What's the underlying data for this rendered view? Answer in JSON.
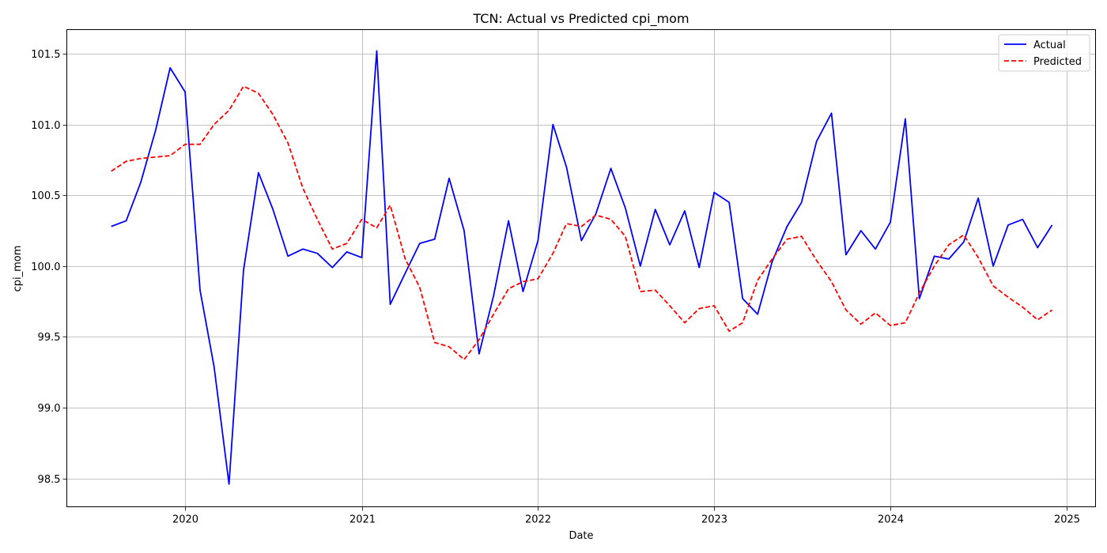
{
  "chart_data": {
    "type": "line",
    "title": "TCN: Actual vs Predicted cpi_mom",
    "xlabel": "Date",
    "ylabel": "cpi_mom",
    "x_tick_labels": [
      "2020",
      "2021",
      "2022",
      "2023",
      "2024",
      "2025"
    ],
    "y_tick_labels": [
      "98.5",
      "99.0",
      "99.5",
      "100.0",
      "100.5",
      "101.0",
      "101.5"
    ],
    "xlim": [
      "2019-05-01",
      "2025-03-01"
    ],
    "ylim": [
      98.3,
      101.67
    ],
    "grid": true,
    "legend_position": "top-right",
    "x": [
      "2019-08",
      "2019-09",
      "2019-10",
      "2019-11",
      "2019-12",
      "2020-01",
      "2020-02",
      "2020-03",
      "2020-04",
      "2020-05",
      "2020-06",
      "2020-07",
      "2020-08",
      "2020-09",
      "2020-10",
      "2020-11",
      "2020-12",
      "2021-01",
      "2021-02",
      "2021-03",
      "2021-04",
      "2021-05",
      "2021-06",
      "2021-07",
      "2021-08",
      "2021-09",
      "2021-10",
      "2021-11",
      "2021-12",
      "2022-01",
      "2022-02",
      "2022-03",
      "2022-04",
      "2022-05",
      "2022-06",
      "2022-07",
      "2022-08",
      "2022-09",
      "2022-10",
      "2022-11",
      "2022-12",
      "2023-01",
      "2023-02",
      "2023-03",
      "2023-04",
      "2023-05",
      "2023-06",
      "2023-07",
      "2023-08",
      "2023-09",
      "2023-10",
      "2023-11",
      "2023-12",
      "2024-01",
      "2024-02",
      "2024-03",
      "2024-04",
      "2024-05",
      "2024-06",
      "2024-07",
      "2024-08",
      "2024-09",
      "2024-10",
      "2024-11",
      "2024-12"
    ],
    "series": [
      {
        "name": "Actual",
        "color": "#0000ff",
        "style": "solid",
        "values": [
          100.28,
          100.32,
          100.59,
          100.96,
          101.4,
          101.23,
          99.83,
          99.29,
          98.46,
          99.97,
          100.66,
          100.4,
          100.07,
          100.12,
          100.09,
          99.99,
          100.1,
          100.06,
          101.52,
          99.73,
          99.95,
          100.16,
          100.19,
          100.62,
          100.25,
          99.38,
          99.79,
          100.32,
          99.82,
          100.18,
          101.0,
          100.7,
          100.18,
          100.37,
          100.69,
          100.41,
          100.0,
          100.4,
          100.15,
          100.39,
          99.99,
          100.52,
          100.45,
          99.77,
          99.66,
          100.03,
          100.28,
          100.45,
          100.88,
          101.08,
          100.08,
          100.25,
          100.12,
          100.31,
          101.04,
          99.77,
          100.07,
          100.05,
          100.17,
          100.48,
          100.0,
          100.29,
          100.33,
          100.13,
          100.29
        ]
      },
      {
        "name": "Predicted",
        "color": "#ff0000",
        "style": "dashed",
        "values": [
          100.67,
          100.74,
          100.76,
          100.77,
          100.78,
          100.86,
          100.86,
          101.0,
          101.1,
          101.27,
          101.22,
          101.07,
          100.87,
          100.55,
          100.33,
          100.12,
          100.16,
          100.33,
          100.27,
          100.43,
          100.05,
          99.85,
          99.46,
          99.43,
          99.34,
          99.48,
          99.66,
          99.84,
          99.89,
          99.91,
          100.09,
          100.3,
          100.28,
          100.36,
          100.33,
          100.21,
          99.82,
          99.83,
          99.72,
          99.6,
          99.7,
          99.72,
          99.54,
          99.6,
          99.9,
          100.05,
          100.19,
          100.21,
          100.04,
          99.89,
          99.69,
          99.59,
          99.67,
          99.58,
          99.6,
          99.81,
          100.0,
          100.15,
          100.22,
          100.06,
          99.86,
          99.78,
          99.71,
          99.62,
          99.69
        ]
      }
    ]
  }
}
